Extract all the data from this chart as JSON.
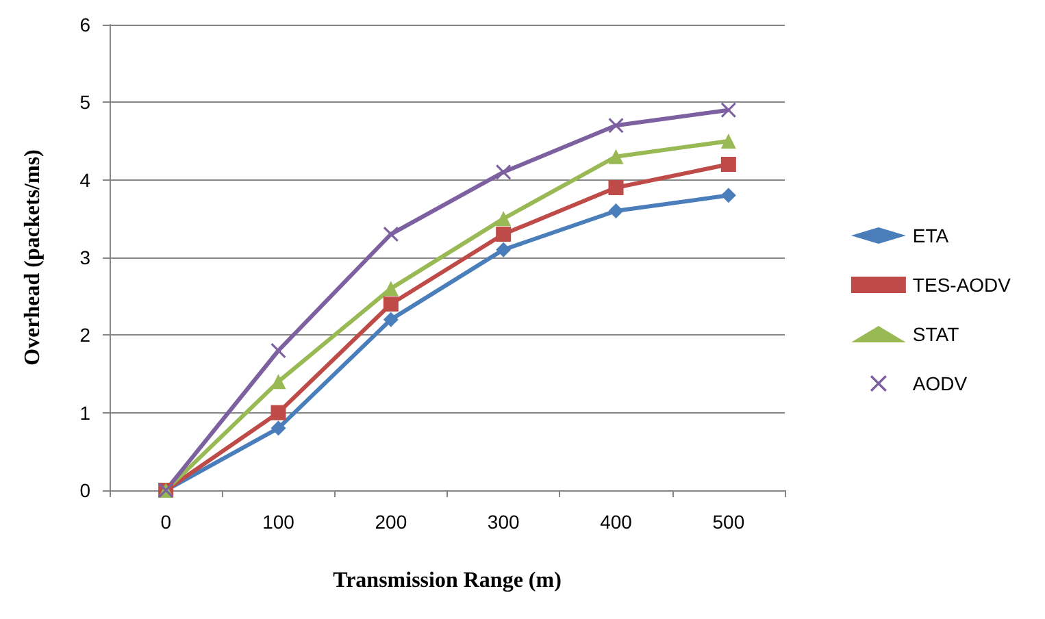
{
  "chart_data": {
    "type": "line",
    "xlabel": "Transmission Range (m)",
    "ylabel": "Overhead (packets/ms)",
    "categories": [
      "0",
      "100",
      "200",
      "300",
      "400",
      "500"
    ],
    "ylim": [
      0,
      6
    ],
    "yticks": [
      0,
      1,
      2,
      3,
      4,
      5,
      6
    ],
    "grid": "y",
    "legend": "right",
    "series": [
      {
        "name": "ETA",
        "color": "#4a7ebb",
        "marker": "diamond",
        "values": [
          0,
          0.8,
          2.2,
          3.1,
          3.6,
          3.8
        ]
      },
      {
        "name": "TES-AODV",
        "color": "#be4b48",
        "marker": "square",
        "values": [
          0,
          1.0,
          2.4,
          3.3,
          3.9,
          4.2
        ]
      },
      {
        "name": "STAT",
        "color": "#98b954",
        "marker": "triangle",
        "values": [
          0,
          1.4,
          2.6,
          3.5,
          4.3,
          4.5
        ]
      },
      {
        "name": "AODV",
        "color": "#7d60a0",
        "marker": "cross",
        "values": [
          0,
          1.8,
          3.3,
          4.1,
          4.7,
          4.9
        ]
      }
    ]
  }
}
